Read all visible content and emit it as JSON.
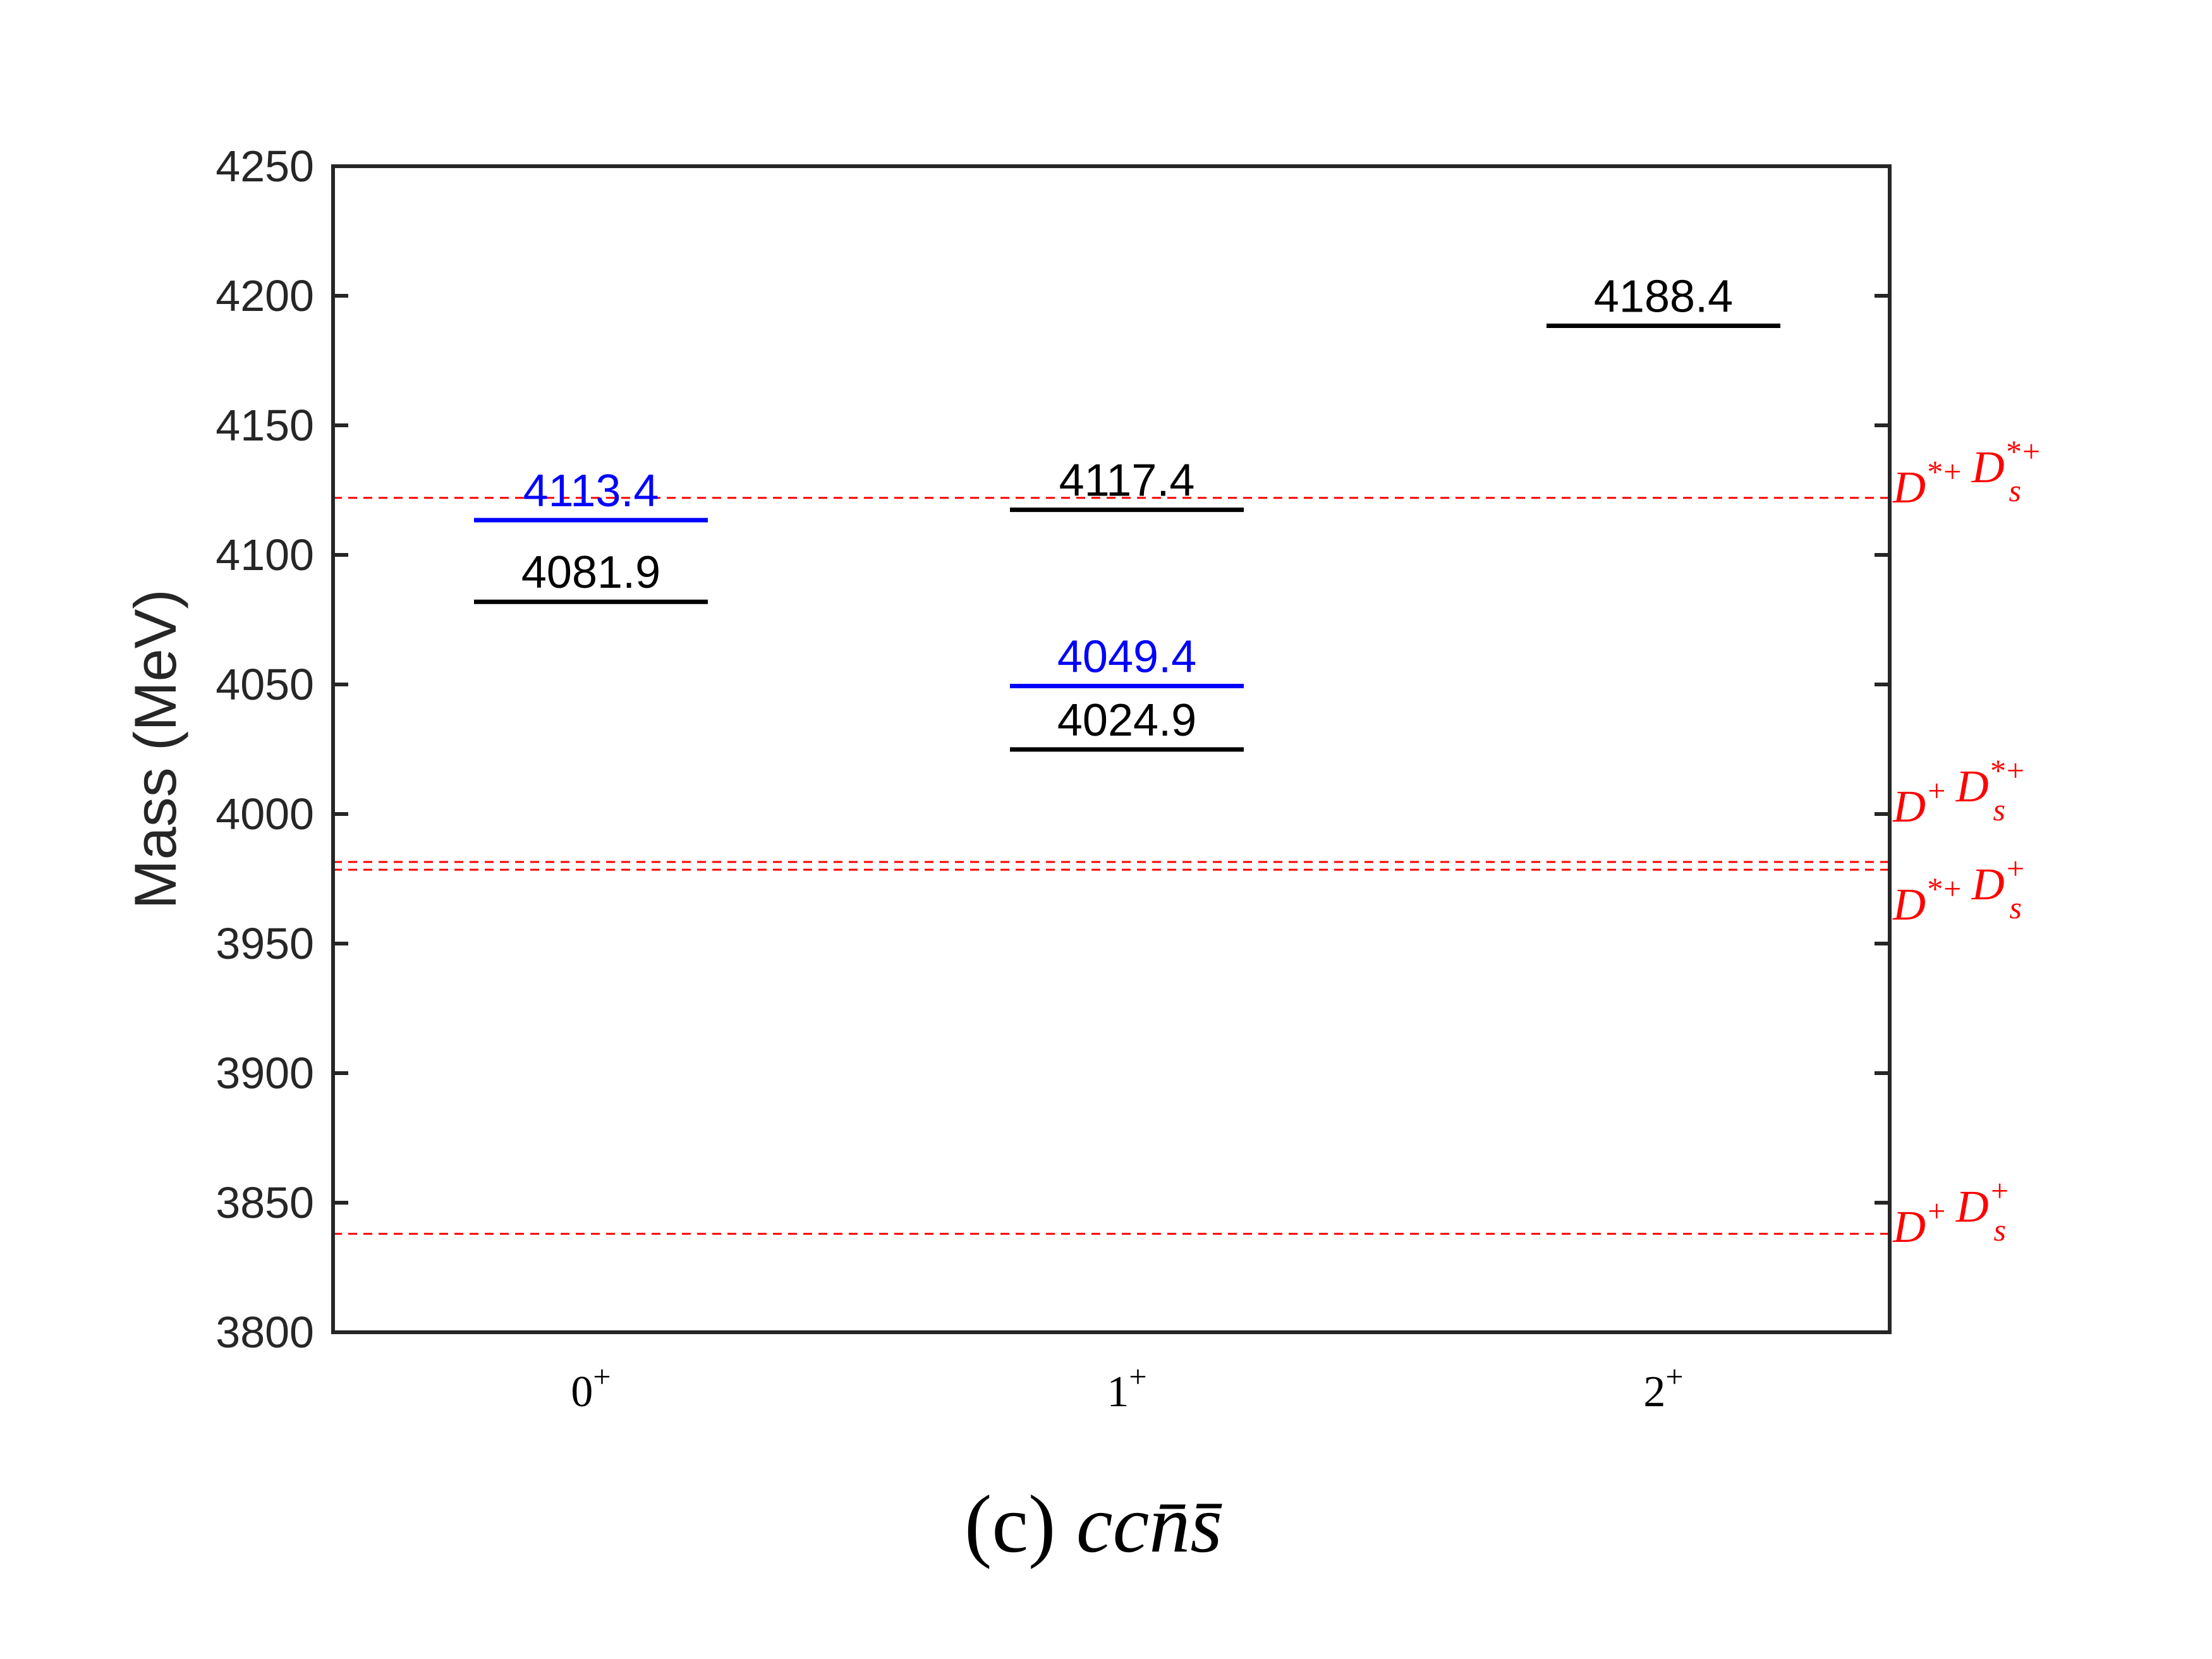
{
  "chart_data": {
    "type": "level-diagram",
    "ylabel": "Mass (MeV)",
    "ylim": [
      3800,
      4250
    ],
    "yticks": [
      3800,
      3850,
      3900,
      3950,
      4000,
      4050,
      4100,
      4150,
      4200,
      4250
    ],
    "categories": [
      {
        "base": "0",
        "sup": "+"
      },
      {
        "base": "1",
        "sup": "+"
      },
      {
        "base": "2",
        "sup": "+"
      }
    ],
    "levels": [
      {
        "category": 0,
        "value": 4113.4,
        "label": "4113.4",
        "color": "#0000ff"
      },
      {
        "category": 0,
        "value": 4081.9,
        "label": "4081.9",
        "color": "#000000"
      },
      {
        "category": 1,
        "value": 4117.4,
        "label": "4117.4",
        "color": "#000000"
      },
      {
        "category": 1,
        "value": 4049.4,
        "label": "4049.4",
        "color": "#0000ff"
      },
      {
        "category": 1,
        "value": 4024.9,
        "label": "4024.9",
        "color": "#000000"
      },
      {
        "category": 2,
        "value": 4188.4,
        "label": "4188.4",
        "color": "#000000"
      }
    ],
    "thresholds": [
      {
        "value": 4122.0,
        "label": [
          {
            "t": "D",
            "sup": "*+"
          },
          {
            "t": "D",
            "sub": "s",
            "sup": "*+"
          }
        ],
        "color": "#ff0000"
      },
      {
        "value": 3981.5,
        "label": [
          {
            "t": "D",
            "sup": "+"
          },
          {
            "t": "D",
            "sub": "s",
            "sup": "*+"
          }
        ],
        "color": "#ff0000"
      },
      {
        "value": 3978.5,
        "label": [
          {
            "t": "D",
            "sup": "*+"
          },
          {
            "t": "D",
            "sub": "s",
            "sup": "+"
          }
        ],
        "color": "#ff0000"
      },
      {
        "value": 3838.0,
        "label": [
          {
            "t": "D",
            "sup": "+"
          },
          {
            "t": "D",
            "sub": "s",
            "sup": "+"
          }
        ],
        "color": "#ff0000"
      }
    ],
    "grid": false
  },
  "caption": {
    "prefix": "(c)",
    "formula": [
      {
        "t": "c"
      },
      {
        "t": "c"
      },
      {
        "t": "n",
        "bar": true
      },
      {
        "t": "s",
        "bar": true
      }
    ]
  }
}
